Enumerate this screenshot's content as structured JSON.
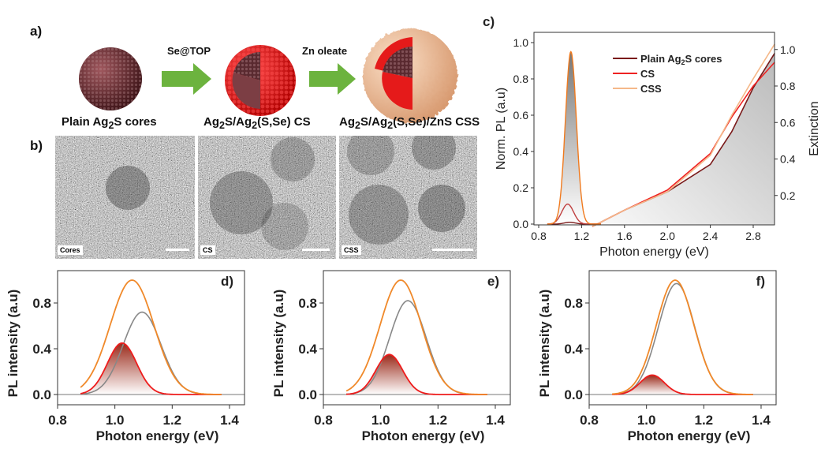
{
  "panels": {
    "a": {
      "label": "a)",
      "step1": "Se@TOP",
      "step2": "Zn oleate"
    },
    "b": {
      "label": "b)",
      "captions": [
        "Plain Ag<sub>2</sub>S cores",
        "Ag<sub>2</sub>S/Ag<sub>2</sub>(S,Se) CS",
        "Ag<sub>2</sub>S/Ag<sub>2</sub>(S,Se)/ZnS CSS"
      ],
      "image_tags": [
        "Cores",
        "CS",
        "CSS"
      ]
    }
  },
  "colors": {
    "cores": "#7a1a1a",
    "cs": "#ee2222",
    "css": "#f5b889",
    "css_pl": "#f07a1e",
    "grey_fit": "#888888",
    "orange_total": "#f0892a",
    "red_comp": "#ee1c1c",
    "arrow": "#6cb33e",
    "shell_zns": "#f3c6a0"
  },
  "chart_data": [
    {
      "panel": "c)",
      "type": "line",
      "xlabel": "Photon energy (eV)",
      "ylabel": "Norm. PL (a.u)",
      "ylabel_right": "Extinction",
      "xlim": [
        0.8,
        3.0
      ],
      "xticks": [
        "0.8",
        "1.2",
        "1.6",
        "2.0",
        "2.4",
        "2.8"
      ],
      "ylim": [
        0,
        1.0
      ],
      "yticks": [
        "0.0",
        "0.2",
        "0.4",
        "0.6",
        "0.8",
        "1.0"
      ],
      "ylim_right": [
        0,
        1.05
      ],
      "yticks_right": [
        "0.2",
        "0.4",
        "0.6",
        "0.8",
        "1.0"
      ],
      "legend": [
        "Plain Ag<sub>2</sub>S cores",
        "CS",
        "CSS"
      ],
      "legend_placement": "top-center",
      "pl_peaks": [
        {
          "series": "Plain Ag2S cores",
          "peak_energy": 1.09,
          "peak_intensity": 0.01,
          "fwhm": 0.12
        },
        {
          "series": "CS",
          "peak_energy": 1.07,
          "peak_intensity": 0.11,
          "fwhm": 0.13
        },
        {
          "series": "CSS",
          "peak_energy": 1.1,
          "peak_intensity": 0.95,
          "fwhm": 0.12
        }
      ],
      "extinction": {
        "x": [
          1.3,
          1.6,
          2.0,
          2.4,
          2.6,
          2.8,
          3.0
        ],
        "series": [
          {
            "name": "Plain Ag2S cores",
            "values": [
              0.03,
              0.12,
              0.22,
              0.37,
              0.55,
              0.79,
              0.98
            ]
          },
          {
            "name": "CS",
            "values": [
              0.03,
              0.12,
              0.23,
              0.43,
              0.63,
              0.8,
              0.93
            ]
          },
          {
            "name": "CSS",
            "values": [
              0.03,
              0.12,
              0.22,
              0.42,
              0.64,
              0.84,
              1.03
            ]
          }
        ]
      }
    },
    {
      "panel": "d)",
      "type": "line",
      "xlabel": "Photon energy (eV)",
      "ylabel": "PL intensity (a.u)",
      "xlim": [
        0.8,
        1.45
      ],
      "xticks": [
        "0.8",
        "1.0",
        "1.2",
        "1.4"
      ],
      "ylim": [
        -0.1,
        1.05
      ],
      "yticks": [
        "0.0",
        "0.4",
        "0.8"
      ],
      "peaks": [
        {
          "color": "orange",
          "peak_energy": 1.06,
          "peak_intensity": 1.0,
          "fwhm": 0.18
        },
        {
          "color": "grey",
          "peak_energy": 1.095,
          "peak_intensity": 0.72,
          "fwhm": 0.155
        },
        {
          "color": "red",
          "peak_energy": 1.025,
          "peak_intensity": 0.45,
          "fwhm": 0.12
        }
      ]
    },
    {
      "panel": "e)",
      "type": "line",
      "xlabel": "Photon energy (eV)",
      "ylabel": "PL intensity (a.u)",
      "xlim": [
        0.8,
        1.45
      ],
      "xticks": [
        "0.8",
        "1.0",
        "1.2",
        "1.4"
      ],
      "ylim": [
        -0.1,
        1.05
      ],
      "yticks": [
        "0.0",
        "0.4",
        "0.8"
      ],
      "peaks": [
        {
          "color": "orange",
          "peak_energy": 1.07,
          "peak_intensity": 1.0,
          "fwhm": 0.17
        },
        {
          "color": "grey",
          "peak_energy": 1.095,
          "peak_intensity": 0.82,
          "fwhm": 0.15
        },
        {
          "color": "red",
          "peak_energy": 1.03,
          "peak_intensity": 0.35,
          "fwhm": 0.11
        }
      ]
    },
    {
      "panel": "f)",
      "type": "line",
      "xlabel": "Photon energy (eV)",
      "ylabel": "PL intensity (a.u)",
      "xlim": [
        0.8,
        1.45
      ],
      "xticks": [
        "0.8",
        "1.0",
        "1.2",
        "1.4"
      ],
      "ylim": [
        -0.1,
        1.05
      ],
      "yticks": [
        "0.0",
        "0.4",
        "0.8"
      ],
      "peaks": [
        {
          "color": "orange",
          "peak_energy": 1.1,
          "peak_intensity": 1.0,
          "fwhm": 0.155
        },
        {
          "color": "grey",
          "peak_energy": 1.105,
          "peak_intensity": 0.97,
          "fwhm": 0.15
        },
        {
          "color": "red",
          "peak_energy": 1.02,
          "peak_intensity": 0.17,
          "fwhm": 0.1
        }
      ]
    }
  ]
}
